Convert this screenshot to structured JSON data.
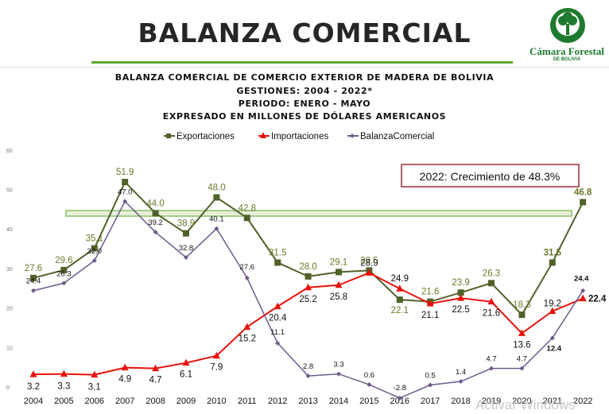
{
  "header": {
    "title": "BALANZA COMERCIAL",
    "logo_name": "Cámara Forestal",
    "logo_sub": "DE BOLIVIA"
  },
  "chart_titles": [
    "BALANZA COMERCIAL DE COMERCIO EXTERIOR DE MADERA DE BOLIVIA",
    "GESTIONES: 2004 - 2022*",
    "PERIODO: ENERO - MAYO",
    "EXPRESADO EN MILLONES DE DÓLARES AMERICANOS"
  ],
  "callout": "2022: Crecimiento de 48.3%",
  "watermark": "Activar Windows",
  "colors": {
    "exports": "#4f6228",
    "imports": "#e8120c",
    "balance": "#6e5a8c",
    "callout_border": "#9b2a36",
    "band": "#8fbf6a"
  },
  "chart_data": {
    "type": "line",
    "categories": [
      "2004",
      "2005",
      "2006",
      "2007",
      "2008",
      "2009",
      "2010",
      "2011",
      "2012",
      "2013",
      "2014",
      "2015",
      "2016",
      "2017",
      "2018",
      "2019",
      "2020",
      "2021",
      "2022"
    ],
    "series": [
      {
        "name": "Exportaciones",
        "values": [
          27.6,
          29.6,
          35.1,
          51.9,
          44.0,
          38.9,
          48.0,
          42.8,
          31.5,
          28.0,
          29.1,
          29.5,
          22.1,
          21.6,
          23.9,
          26.3,
          18.3,
          31.5,
          46.8
        ]
      },
      {
        "name": "Importaciones",
        "values": [
          3.2,
          3.3,
          3.1,
          4.9,
          4.7,
          6.1,
          7.9,
          15.2,
          20.4,
          25.2,
          25.8,
          28.9,
          24.9,
          21.1,
          22.5,
          21.6,
          13.6,
          19.2,
          22.4
        ]
      },
      {
        "name": "BalanzaComercial",
        "values": [
          24.4,
          26.3,
          32.0,
          47.0,
          39.2,
          32.8,
          40.1,
          27.6,
          11.1,
          2.8,
          3.3,
          0.6,
          -2.8,
          0.5,
          1.4,
          4.7,
          4.7,
          12.4,
          24.4
        ]
      }
    ],
    "yticks": [
      0,
      10,
      20,
      30,
      40,
      50,
      60
    ],
    "ylim": [
      -2.8,
      60
    ],
    "legend": "top-center",
    "grid": false
  }
}
